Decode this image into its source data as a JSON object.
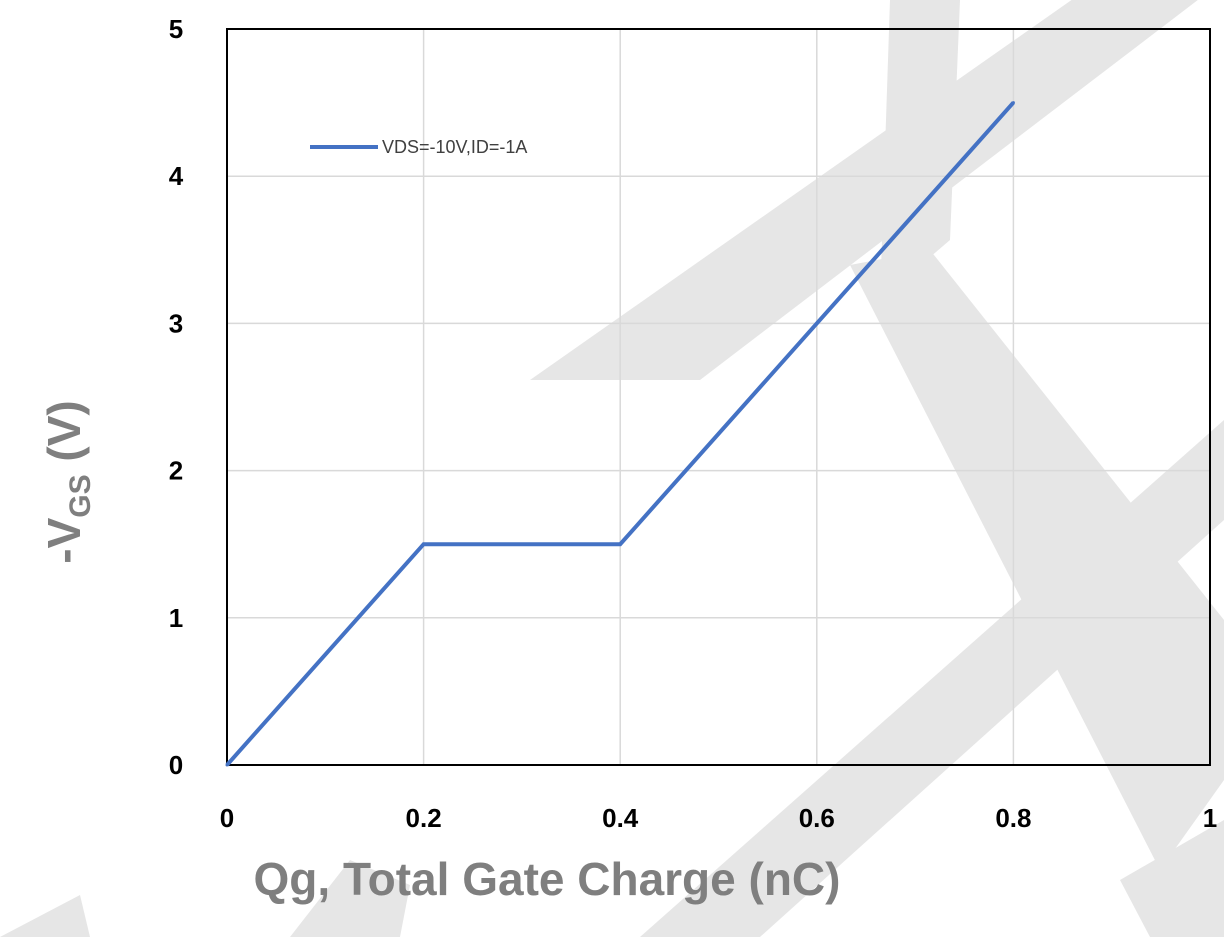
{
  "chart_data": {
    "type": "line",
    "xlabel": "Qg, Total Gate Charge (nC)",
    "ylabel": {
      "prefix": "-V",
      "subscript": "GS",
      "suffix": " (V)"
    },
    "xlim": [
      0,
      1
    ],
    "ylim": [
      0,
      5
    ],
    "xticks": [
      "0",
      "0.2",
      "0.4",
      "0.6",
      "0.8",
      "1"
    ],
    "yticks": [
      "0",
      "1",
      "2",
      "3",
      "4",
      "5"
    ],
    "grid": true,
    "legend_position": "top-left",
    "series": [
      {
        "name": "VDS=-10V,ID=-1A",
        "color": "#4472c4",
        "x": [
          0,
          0.2,
          0.4,
          0.6,
          0.8
        ],
        "y": [
          0,
          1.5,
          1.5,
          3.0,
          4.5
        ]
      }
    ]
  }
}
